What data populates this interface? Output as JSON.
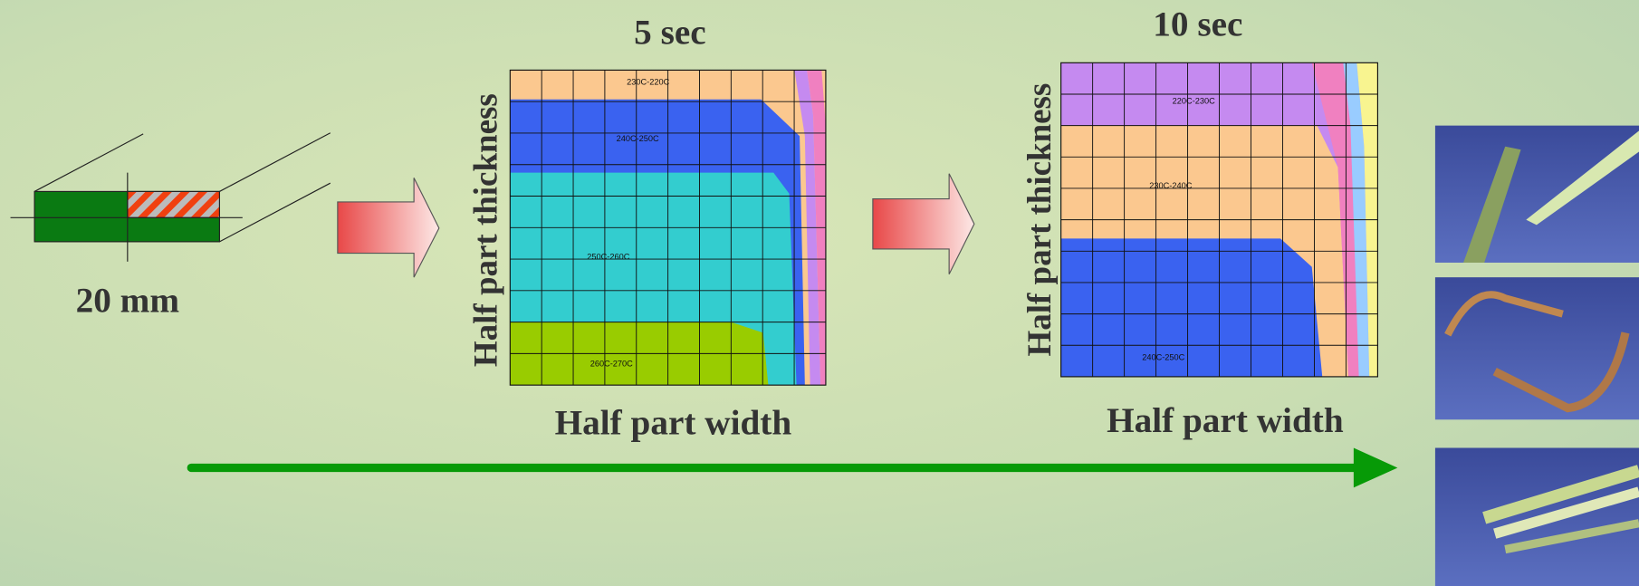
{
  "cross_section": {
    "label": "20 mm"
  },
  "panels": [
    {
      "title": "5 sec",
      "y_label": "Half part thickness",
      "x_label": "Half part width",
      "zones": [
        {
          "label": "230C-220C"
        },
        {
          "label": "240C-250C"
        },
        {
          "label": "250C-260C"
        },
        {
          "label": "260C-270C"
        }
      ]
    },
    {
      "title": "10 sec",
      "y_label": "Half part thickness",
      "x_label": "Half part width",
      "zones": [
        {
          "label": "220C-230C"
        },
        {
          "label": "230C-240C"
        },
        {
          "label": "240C-250C"
        }
      ]
    }
  ]
}
